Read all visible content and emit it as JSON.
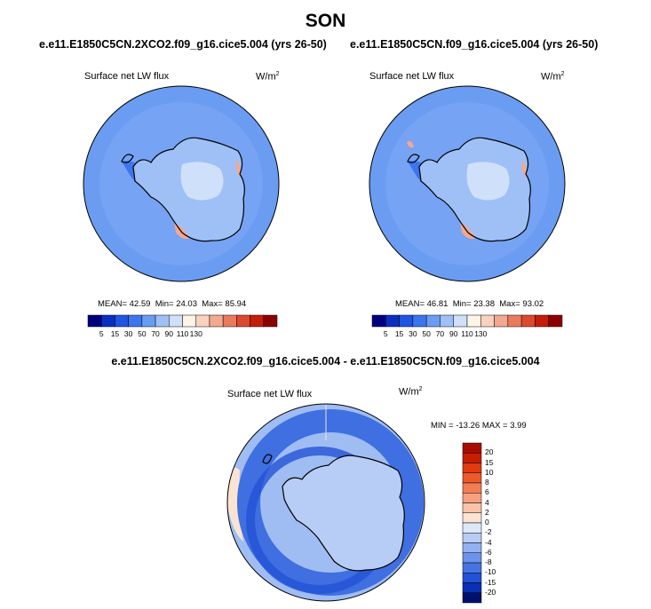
{
  "page": {
    "title": "SON"
  },
  "panels": [
    {
      "title": "e.e11.E1850C5CN.2XCO2.f09_g16.cice5.004 (yrs 26-50)",
      "variable": "Surface net LW flux",
      "units_base": "W/m",
      "units_exp": "2",
      "mean_label": "MEAN=",
      "mean": "42.59",
      "min_label": "Min=",
      "min": "24.03",
      "max_label": "Max=",
      "max": "85.94"
    },
    {
      "title": "e.e11.E1850C5CN.f09_g16.cice5.004 (yrs 26-50)",
      "variable": "Surface net LW flux",
      "units_base": "W/m",
      "units_exp": "2",
      "mean_label": "MEAN=",
      "mean": "46.81",
      "min_label": "Min=",
      "min": "23.38",
      "max_label": "Max=",
      "max": "93.02"
    }
  ],
  "abs_colorbar": {
    "labels": [
      "5",
      "15",
      "30",
      "50",
      "70",
      "90",
      "110",
      "130"
    ],
    "colors": [
      "#00007f",
      "#0a2fc0",
      "#1f55e0",
      "#3b76ee",
      "#6a9cf2",
      "#9fc0f6",
      "#cfe0fa",
      "#fff4e8",
      "#f9d2bf",
      "#f3a890",
      "#ea7a5e",
      "#db4a2f",
      "#c41d0b",
      "#8c0000"
    ]
  },
  "diff_panel": {
    "title": "e.e11.E1850C5CN.2XCO2.f09_g16.cice5.004 - e.e11.E1850C5CN.f09_g16.cice5.004",
    "variable": "Surface net LW flux",
    "units_base": "W/m",
    "units_exp": "2",
    "stats": "MIN = -13.26 MAX =  3.99"
  },
  "diff_colorbar": {
    "labels": [
      "20",
      "15",
      "10",
      "8",
      "6",
      "4",
      "2",
      "0",
      "-2",
      "-4",
      "-6",
      "-8",
      "-10",
      "-15",
      "-20"
    ],
    "colors": [
      "#a80c00",
      "#c81e00",
      "#e03a10",
      "#ec5a2c",
      "#f27d52",
      "#f5a07e",
      "#f8c3a8",
      "#fbe3d2",
      "#dce8fa",
      "#b8cdf5",
      "#92b1f0",
      "#6b93ea",
      "#4574e2",
      "#2352d6",
      "#0a2fb4",
      "#00106e"
    ]
  },
  "map_colors": {
    "ocean_abs": "#6a9cf2",
    "ocean_abs_light": "#7ea9f3",
    "ice_abs": "#9fc0f6",
    "ice_abs_pale": "#cfe0fa",
    "coast_dark": "#3b76ee",
    "warm_spot": "#f3a890",
    "ocean_diff": "#9fbdf3",
    "ring_diff": "#3f6fe0",
    "ring_diff_dark": "#2352d6",
    "ice_diff": "#b8cdf5",
    "edge_diff_warm": "#fbe3d2"
  }
}
